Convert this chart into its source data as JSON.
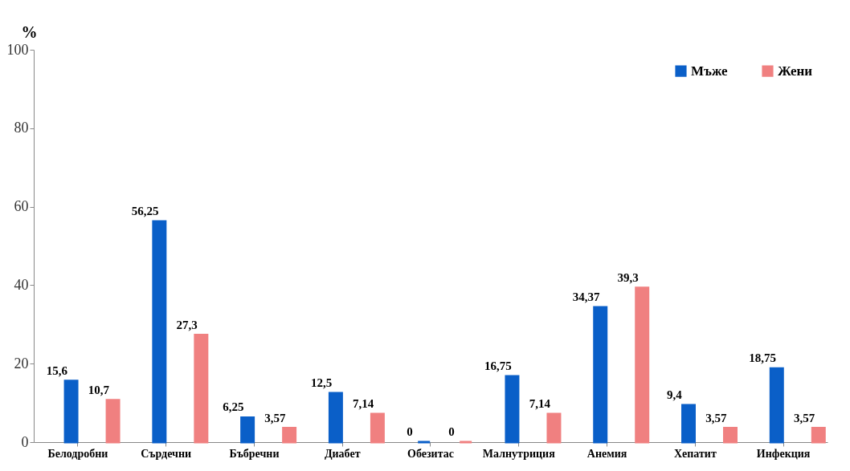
{
  "chart_data": {
    "type": "bar",
    "ylabel": "%",
    "categories": [
      "Белодробни",
      "Сърдечни",
      "Бъбречни",
      "Диабет",
      "Обезитас",
      "Малнутриция",
      "Анемия",
      "Хепатит",
      "Инфекция"
    ],
    "series": [
      {
        "name": "Мъже",
        "color": "#0a5fc8",
        "values": [
          15.6,
          56.25,
          6.25,
          12.5,
          0,
          16.75,
          34.37,
          9.4,
          18.75
        ],
        "value_labels": [
          "15,6",
          "56,25",
          "6,25",
          "12,5",
          "0",
          "16,75",
          "34,37",
          "9,4",
          "18,75"
        ]
      },
      {
        "name": "Жени",
        "color": "#f08080",
        "values": [
          10.7,
          27.3,
          3.57,
          7.14,
          0,
          7.14,
          39.3,
          3.57,
          3.57
        ],
        "value_labels": [
          "10,7",
          "27,3",
          "3,57",
          "7,14",
          "0",
          "7,14",
          "39,3",
          "3,57",
          "3,57"
        ]
      }
    ],
    "ylim": [
      0,
      100
    ],
    "yticks": [
      0,
      20,
      40,
      60,
      80,
      100
    ],
    "grid": false,
    "legend": "top right"
  }
}
